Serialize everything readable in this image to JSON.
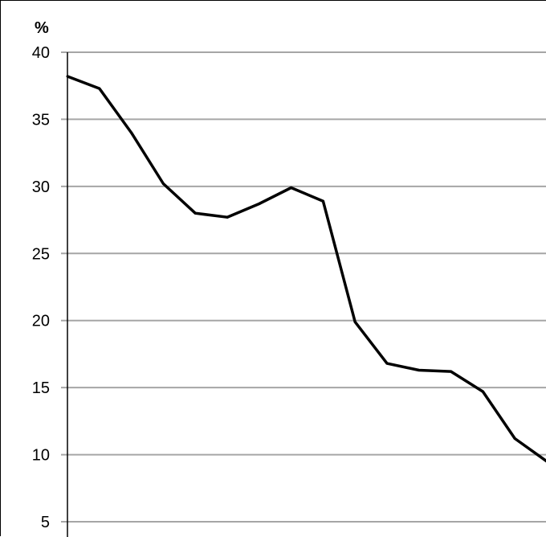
{
  "chart_data": {
    "type": "line",
    "title": "",
    "xlabel": "",
    "ylabel": "%",
    "ylim": [
      5,
      40
    ],
    "yticks": [
      5,
      10,
      15,
      20,
      25,
      30,
      35,
      40
    ],
    "grid": true,
    "legend": "none",
    "colors": {
      "line": "#000000",
      "grid": "#a6a6a6",
      "axis": "#000000",
      "background": "#ffffff"
    },
    "series": [
      {
        "values": [
          38.2,
          37.3,
          34.0,
          30.2,
          28.0,
          27.7,
          28.7,
          29.9,
          28.9,
          19.9,
          16.8,
          16.3,
          16.2,
          14.7,
          11.2,
          9.5
        ]
      }
    ]
  }
}
